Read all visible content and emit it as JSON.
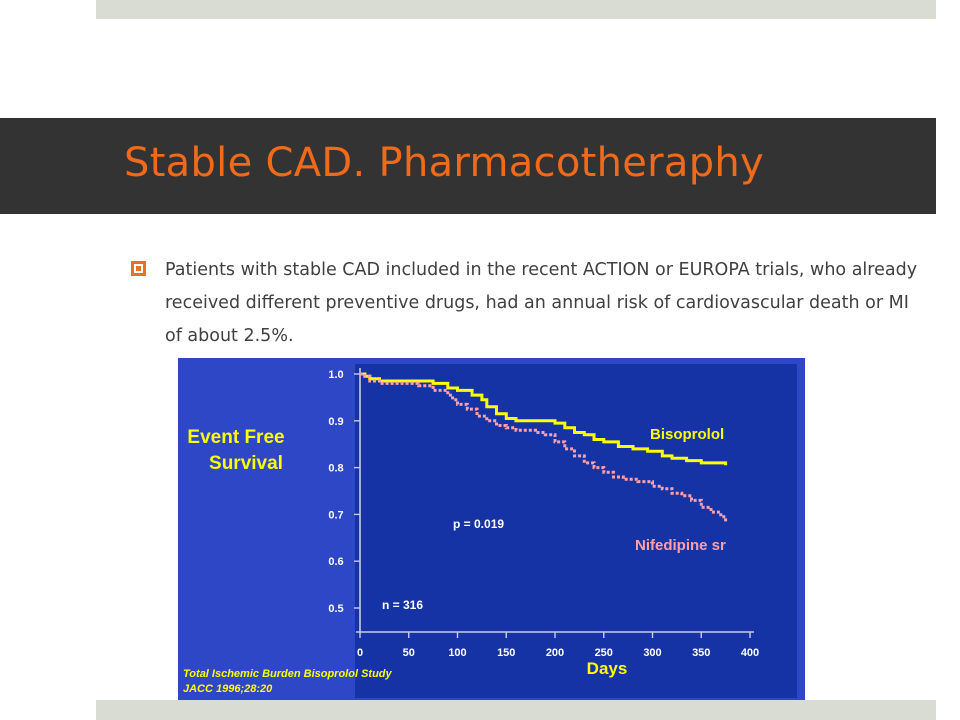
{
  "slide": {
    "title": "Stable CAD. Pharmacotheraphy",
    "bullet": "Patients with stable CAD included in the recent ACTION or EUROPA trials, who already received different preventive drugs, had an annual risk of cardiovascular death or MI of about 2.5%."
  },
  "figure": {
    "ylabel_line1": "Event Free",
    "ylabel_line2": "Survival",
    "xlabel": "Days",
    "annotation_p": "p = 0.019",
    "annotation_n": "n = 316",
    "series_label_1": "Bisoprolol",
    "series_label_2": "Nifedipine sr",
    "source_line1": "Total Ischemic Burden Bisoprolol Study",
    "source_line2": "JACC 1996;28:20"
  },
  "colors": {
    "title": "#f06a1a",
    "bullet": "#e8701f",
    "figure_bg": "#2d47c7",
    "plot_bg": "#1633a6",
    "bisoprolol": "#ffff00",
    "nifedipine": "#ff9fa8"
  },
  "chart_data": {
    "type": "line",
    "xlabel": "Days",
    "ylabel": "Event Free Survival",
    "xlim": [
      0,
      400
    ],
    "ylim": [
      0.5,
      1.0
    ],
    "x_ticks": [
      0,
      50,
      100,
      150,
      200,
      250,
      300,
      350,
      400
    ],
    "y_ticks": [
      0.5,
      0.6,
      0.7,
      0.8,
      0.9,
      1.0
    ],
    "x_tick_labels": [
      "0",
      "50",
      "100",
      "150",
      "200",
      "250",
      "300",
      "350",
      "400"
    ],
    "y_tick_labels": [
      "0.5",
      "0.6",
      "0.7",
      "0.8",
      "0.9",
      "1.0"
    ],
    "series": [
      {
        "name": "Bisoprolol",
        "x": [
          0,
          5,
          10,
          20,
          30,
          40,
          50,
          60,
          75,
          90,
          100,
          115,
          125,
          130,
          140,
          150,
          160,
          175,
          190,
          200,
          210,
          220,
          230,
          240,
          250,
          265,
          280,
          295,
          310,
          320,
          335,
          350,
          365,
          375
        ],
        "y": [
          1.0,
          0.995,
          0.99,
          0.985,
          0.985,
          0.985,
          0.985,
          0.985,
          0.98,
          0.97,
          0.965,
          0.955,
          0.945,
          0.93,
          0.915,
          0.905,
          0.9,
          0.9,
          0.9,
          0.895,
          0.885,
          0.875,
          0.87,
          0.86,
          0.855,
          0.845,
          0.84,
          0.835,
          0.825,
          0.82,
          0.815,
          0.81,
          0.81,
          0.805
        ]
      },
      {
        "name": "Nifedipine sr",
        "x": [
          0,
          5,
          10,
          20,
          30,
          40,
          50,
          60,
          75,
          90,
          95,
          100,
          110,
          120,
          130,
          140,
          150,
          160,
          170,
          180,
          190,
          200,
          210,
          220,
          230,
          240,
          250,
          260,
          270,
          285,
          300,
          310,
          320,
          330,
          340,
          350,
          360,
          370,
          375
        ],
        "y": [
          1.0,
          0.995,
          0.985,
          0.98,
          0.98,
          0.98,
          0.98,
          0.975,
          0.965,
          0.955,
          0.945,
          0.935,
          0.925,
          0.91,
          0.9,
          0.89,
          0.885,
          0.88,
          0.88,
          0.875,
          0.87,
          0.855,
          0.84,
          0.825,
          0.81,
          0.8,
          0.79,
          0.78,
          0.775,
          0.77,
          0.76,
          0.755,
          0.745,
          0.74,
          0.73,
          0.715,
          0.705,
          0.695,
          0.685
        ]
      }
    ]
  }
}
